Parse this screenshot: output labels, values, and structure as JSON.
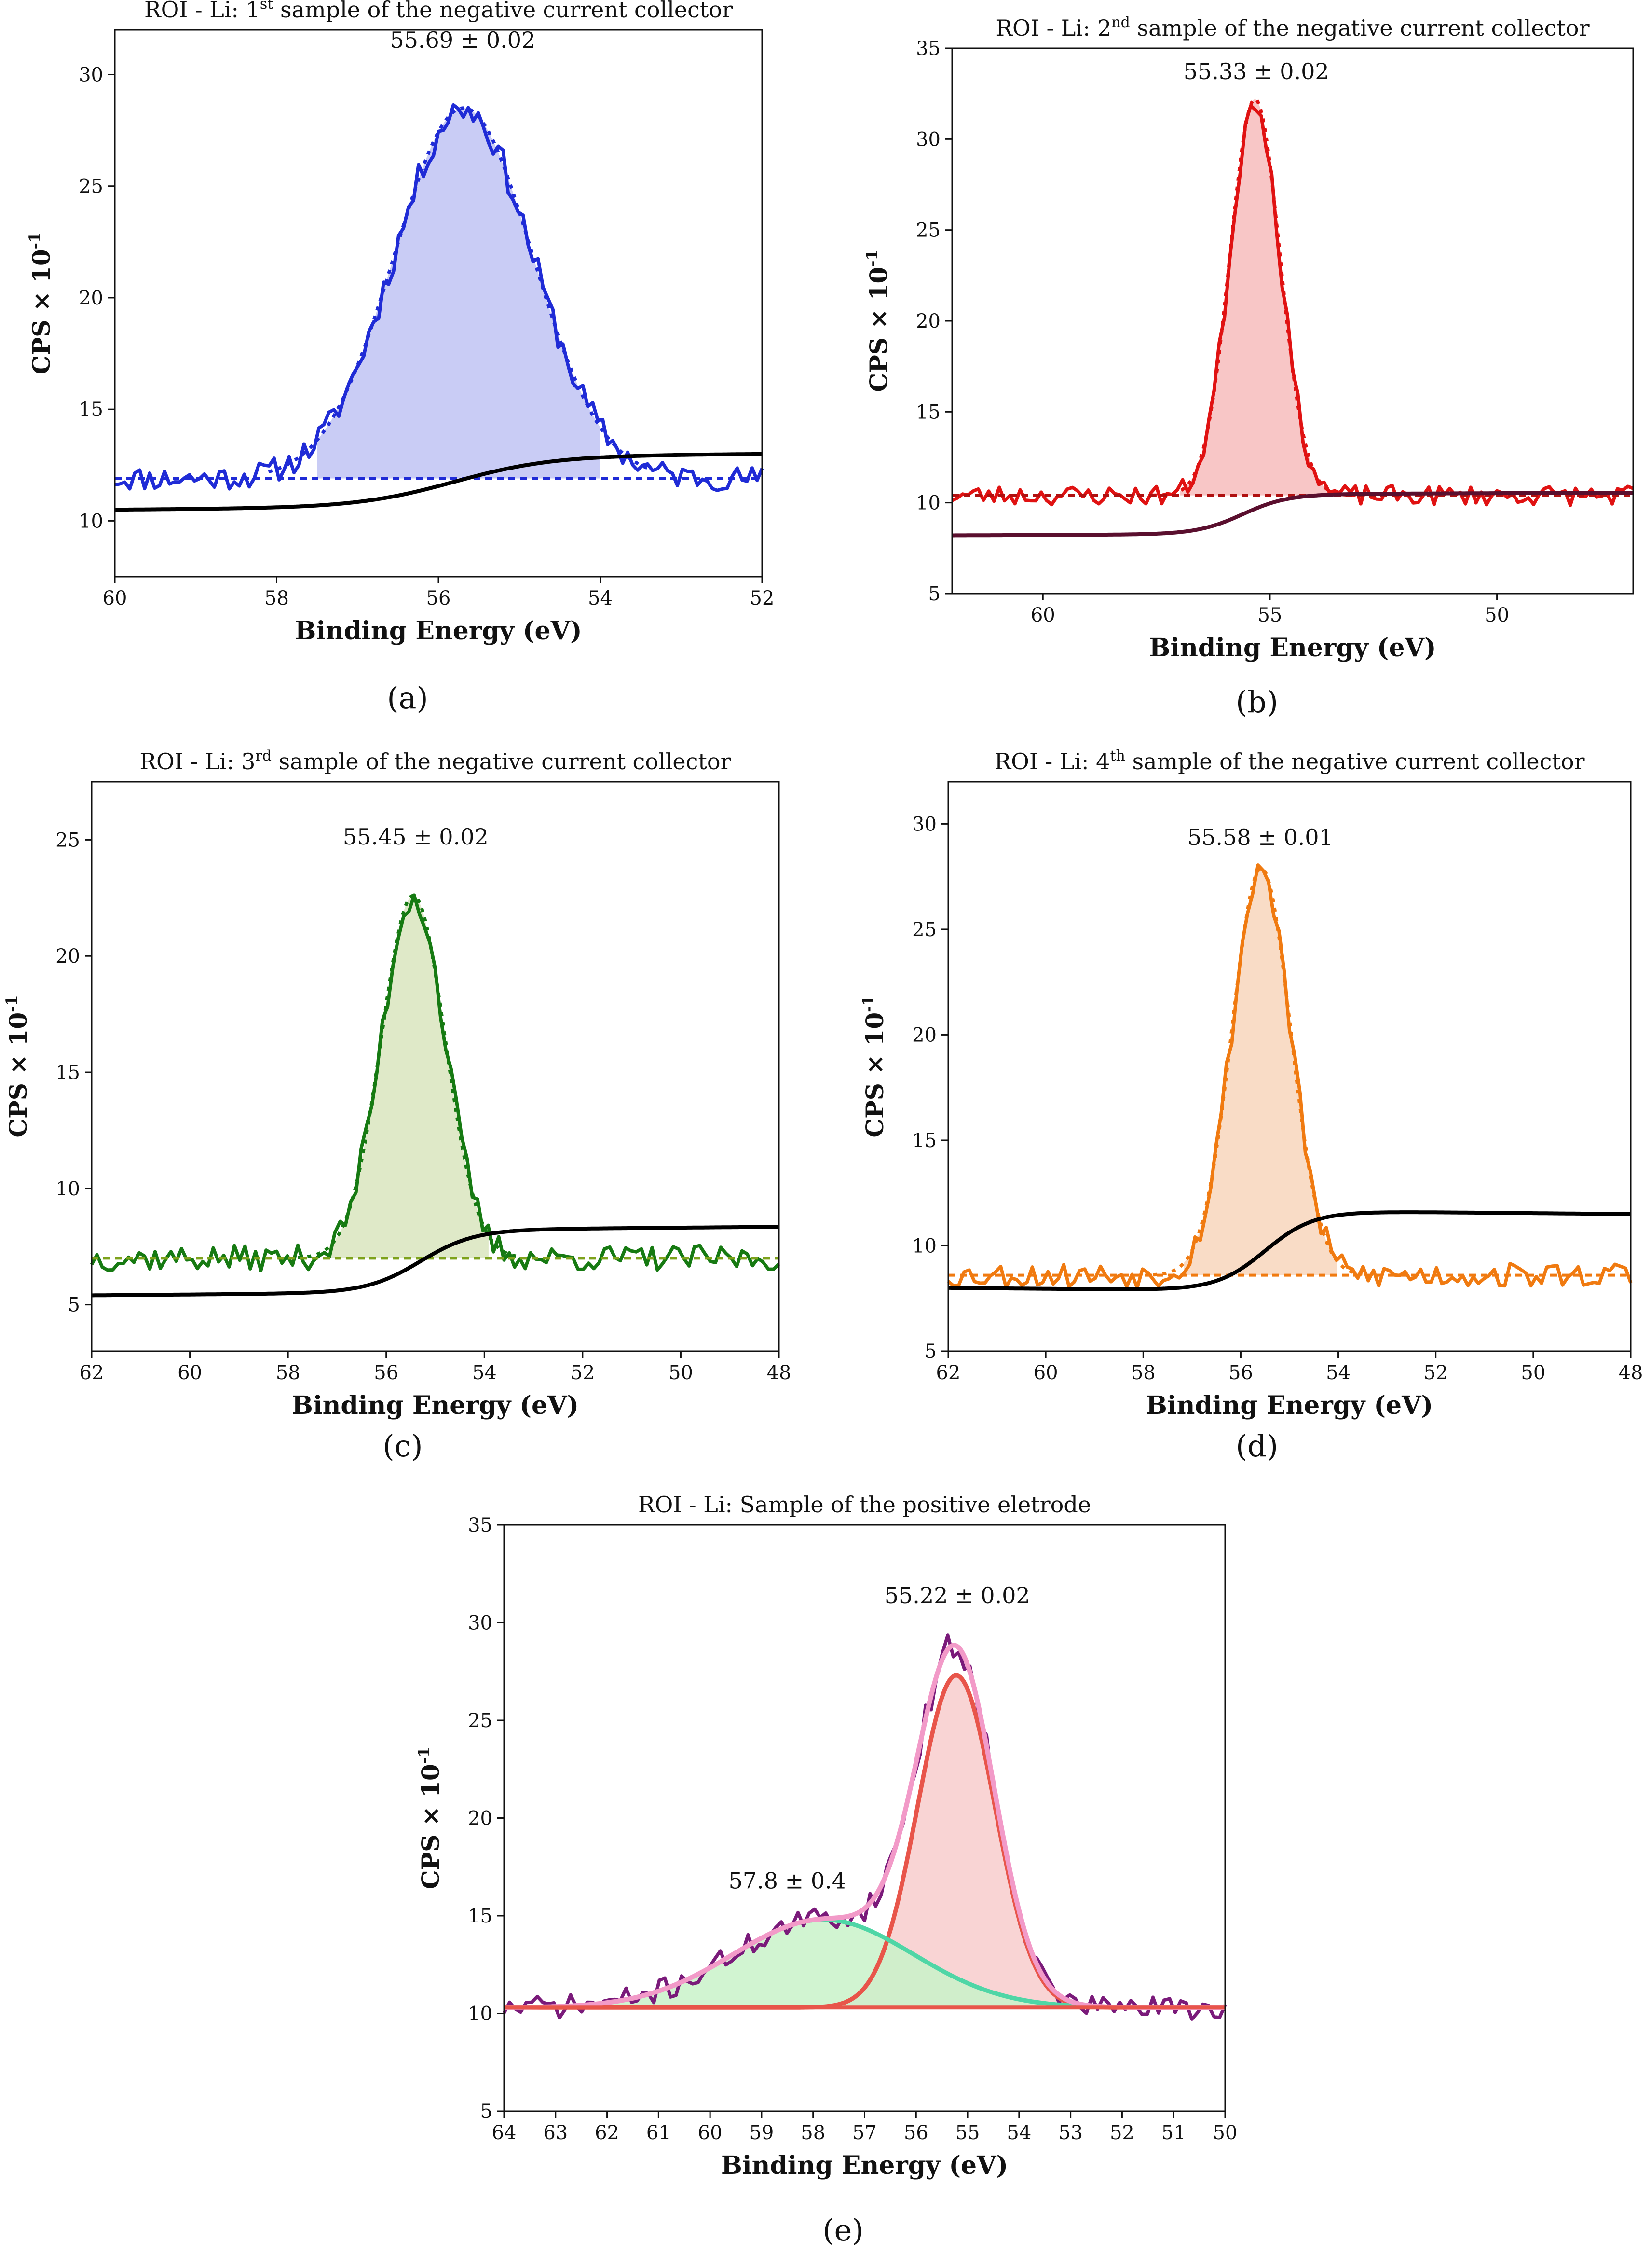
{
  "figure": {
    "panel_labels": [
      "(a)",
      "(b)",
      "(c)",
      "(d)",
      "(e)"
    ]
  },
  "chart_data": [
    {
      "id": "a",
      "type": "line",
      "title_prefix": "ROI - Li: 1",
      "title_sup": "st",
      "title_suffix": " sample of the negative current collector",
      "xlabel": "Binding Energy (eV)",
      "ylabel_main": "CPS × 10",
      "ylabel_sup": "-1",
      "xlim": [
        60,
        52
      ],
      "ylim": [
        7.5,
        32
      ],
      "xticks": [
        60,
        58,
        56,
        54,
        52
      ],
      "yticks": [
        10,
        15,
        20,
        25,
        30
      ],
      "color": "#1f2bd6",
      "fill": "#c9ccf5",
      "annotations": [
        {
          "text": "55.69 ± 0.02",
          "x": 55.7,
          "y": 31.2
        }
      ],
      "peaks": [
        {
          "center": 55.69,
          "height": 16.6,
          "sigma": 0.85,
          "fill": "#c9ccf5",
          "stroke": "#1f2bd6"
        }
      ],
      "baseline": {
        "start": 10.5,
        "end": 12.8,
        "center": 55.8,
        "width": 0.6,
        "drift": 0.2,
        "color": "#000000"
      },
      "offset_line": {
        "value": 11.9,
        "color": "#1f2bd6"
      },
      "region": [
        57.5,
        54.0
      ],
      "noise": 0.55,
      "seed": 11
    },
    {
      "id": "b",
      "type": "line",
      "title_prefix": "ROI - Li: 2",
      "title_sup": "nd",
      "title_suffix": " sample of the negative current collector",
      "xlabel": "Binding Energy (eV)",
      "ylabel_main": "CPS × 10",
      "ylabel_sup": "-1",
      "xlim": [
        62,
        47
      ],
      "ylim": [
        5,
        35
      ],
      "xticks": [
        60,
        55,
        50
      ],
      "yticks": [
        5,
        10,
        15,
        20,
        25,
        30,
        35
      ],
      "color": "#e01212",
      "fill": "#f8c6c6",
      "annotations": [
        {
          "text": "55.33 ± 0.02",
          "x": 55.3,
          "y": 33.3
        }
      ],
      "peaks": [
        {
          "center": 55.33,
          "height": 21.8,
          "sigma": 0.55,
          "fill": "#f8c6c6",
          "stroke": "#e01212"
        }
      ],
      "baseline": {
        "start": 8.2,
        "end": 10.4,
        "center": 55.6,
        "width": 0.5,
        "drift": 0.15,
        "color": "#5a0f2e"
      },
      "offset_line": {
        "value": 10.4,
        "color": "#b01010"
      },
      "region": [
        57.0,
        53.7
      ],
      "noise": 0.55,
      "seed": 23
    },
    {
      "id": "c",
      "type": "line",
      "title_prefix": "ROI - Li: 3",
      "title_sup": "rd",
      "title_suffix": " sample of the negative current collector",
      "xlabel": "Binding Energy (eV)",
      "ylabel_main": "CPS × 10",
      "ylabel_sup": "-1",
      "xlim": [
        62,
        48
      ],
      "ylim": [
        3,
        27.5
      ],
      "xticks": [
        62,
        60,
        58,
        56,
        54,
        52,
        50,
        48
      ],
      "yticks": [
        5,
        10,
        15,
        20,
        25
      ],
      "color": "#167a12",
      "fill": "#dfe9c8",
      "annotations": [
        {
          "text": "55.45 ± 0.02",
          "x": 55.4,
          "y": 24.8
        }
      ],
      "peaks": [
        {
          "center": 55.45,
          "height": 15.6,
          "sigma": 0.65,
          "fill": "#dfe9c8",
          "stroke": "#167a12"
        }
      ],
      "baseline": {
        "start": 5.4,
        "end": 8.1,
        "center": 55.3,
        "width": 0.55,
        "drift": 0.25,
        "color": "#000000"
      },
      "offset_line": {
        "value": 7.0,
        "color": "#7da21b"
      },
      "region": [
        57.2,
        53.9
      ],
      "noise": 0.55,
      "seed": 37
    },
    {
      "id": "d",
      "type": "line",
      "title_prefix": "ROI - Li: 4",
      "title_sup": "th",
      "title_suffix": " sample of the negative current collector",
      "xlabel": "Binding Energy (eV)",
      "ylabel_main": "CPS × 10",
      "ylabel_sup": "-1",
      "xlim": [
        62,
        48
      ],
      "ylim": [
        5,
        32
      ],
      "xticks": [
        62,
        60,
        58,
        56,
        54,
        52,
        50,
        48
      ],
      "yticks": [
        5,
        10,
        15,
        20,
        25,
        30
      ],
      "color": "#f07a10",
      "fill": "#f9dcc6",
      "annotations": [
        {
          "text": "55.58 ± 0.01",
          "x": 55.6,
          "y": 29.0
        }
      ],
      "peaks": [
        {
          "center": 55.58,
          "height": 19.3,
          "sigma": 0.6,
          "fill": "#f9dcc6",
          "stroke": "#f07a10"
        }
      ],
      "baseline": {
        "start": 8.0,
        "end": 11.8,
        "center": 55.5,
        "width": 0.5,
        "drift": -0.3,
        "color": "#000000"
      },
      "offset_line": {
        "value": 8.6,
        "color": "#f07a10"
      },
      "region": [
        57.2,
        54.0
      ],
      "noise": 0.6,
      "seed": 53
    },
    {
      "id": "e",
      "type": "line",
      "title_prefix": "ROI - Li: Sample of the positive eletrode",
      "title_sup": "",
      "title_suffix": "",
      "xlabel": "Binding Energy (eV)",
      "ylabel_main": "CPS × 10",
      "ylabel_sup": "-1",
      "xlim": [
        64,
        50
      ],
      "ylim": [
        5,
        35
      ],
      "xticks": [
        64,
        63,
        62,
        61,
        60,
        59,
        58,
        57,
        56,
        55,
        54,
        53,
        52,
        51,
        50
      ],
      "yticks": [
        5,
        10,
        15,
        20,
        25,
        30,
        35
      ],
      "color": "#7a1a7a",
      "fill": "#f8cccc",
      "annotations": [
        {
          "text": "55.22 ± 0.02",
          "x": 55.2,
          "y": 31.0
        },
        {
          "text": "57.8 ± 0.4",
          "x": 58.5,
          "y": 16.4
        }
      ],
      "peaks": [
        {
          "center": 55.22,
          "height": 17.0,
          "sigma": 0.75,
          "fill": "#f8cccc",
          "stroke": "#e8554a"
        },
        {
          "center": 57.8,
          "height": 4.5,
          "sigma": 1.75,
          "fill": "#c9f2c9",
          "stroke": "#4fd6a6"
        }
      ],
      "baseline": {
        "start": 10.3,
        "end": 10.3,
        "center": 57,
        "width": 1,
        "drift": 0,
        "color": "#e8554a"
      },
      "envelope_color": "#f29ac8",
      "region": [
        64,
        50
      ],
      "noise": 0.6,
      "seed": 71
    }
  ]
}
